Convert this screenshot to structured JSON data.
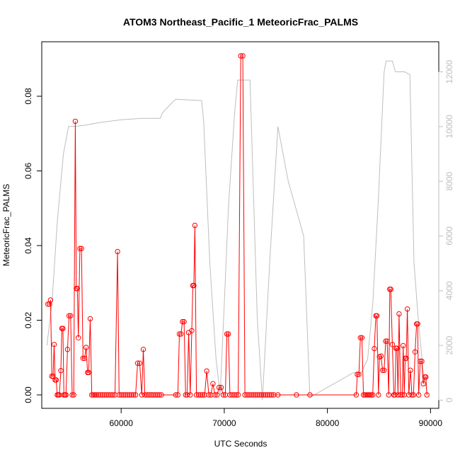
{
  "chart_data": {
    "type": "line",
    "title": "ATOM3 Northeast_Pacific_1 MeteoricFrac_PALMS",
    "xlabel": "UTC Seconds",
    "ylabel": "MeteoricFrac_PALMS",
    "xlim": [
      52300,
      90800
    ],
    "ylim": [
      -0.0036,
      0.0946
    ],
    "y2lim": [
      -300,
      13100
    ],
    "x_ticks": [
      "60000",
      "70000",
      "80000",
      "90000"
    ],
    "y_ticks": [
      "0.00",
      "0.02",
      "0.04",
      "0.06",
      "0.08"
    ],
    "y2_ticks": [
      "0",
      "2000",
      "4000",
      "6000",
      "8000",
      "10000",
      "12000"
    ],
    "colors": {
      "series": "#ff0000",
      "altitude": "#bebebe",
      "frame": "#000000"
    },
    "series": [
      {
        "points": [
          [
            52900,
            0.0243
          ],
          [
            53050,
            0.0243
          ],
          [
            53150,
            0.0254
          ],
          [
            53280,
            0.005
          ],
          [
            53400,
            0.005
          ],
          [
            53500,
            0.0135
          ],
          [
            53600,
            0.004
          ],
          [
            53700,
            0.004
          ],
          [
            53800,
            0.0
          ],
          [
            53900,
            0.0
          ],
          [
            54000,
            0.0
          ],
          [
            54150,
            0.0065
          ],
          [
            54250,
            0.0178
          ],
          [
            54350,
            0.0178
          ],
          [
            54450,
            0.0
          ],
          [
            54550,
            0.0
          ],
          [
            54650,
            0.0
          ],
          [
            54800,
            0.0122
          ],
          [
            54950,
            0.0212
          ],
          [
            55100,
            0.0212
          ],
          [
            55250,
            0.0
          ],
          [
            55400,
            0.0
          ],
          [
            55550,
            0.0733
          ],
          [
            55650,
            0.0285
          ],
          [
            55750,
            0.0285
          ],
          [
            55850,
            0.0153
          ],
          [
            56000,
            0.0392
          ],
          [
            56150,
            0.0392
          ],
          [
            56300,
            0.0098
          ],
          [
            56450,
            0.0098
          ],
          [
            56600,
            0.0127
          ],
          [
            56750,
            0.006
          ],
          [
            56850,
            0.006
          ],
          [
            57000,
            0.0204
          ],
          [
            57150,
            0.0
          ],
          [
            57300,
            0.0
          ],
          [
            57450,
            0.0
          ],
          [
            57600,
            0.0
          ],
          [
            57800,
            0.0
          ],
          [
            58000,
            0.0
          ],
          [
            58200,
            0.0
          ],
          [
            58400,
            0.0
          ],
          [
            58600,
            0.0
          ],
          [
            58800,
            0.0
          ],
          [
            59000,
            0.0
          ],
          [
            59200,
            0.0
          ],
          [
            59400,
            0.0
          ],
          [
            59650,
            0.0384
          ],
          [
            59800,
            0.0
          ],
          [
            60000,
            0.0
          ],
          [
            60200,
            0.0
          ],
          [
            60400,
            0.0
          ],
          [
            60600,
            0.0
          ],
          [
            60800,
            0.0
          ],
          [
            61000,
            0.0
          ],
          [
            61200,
            0.0
          ],
          [
            61400,
            0.0
          ],
          [
            61600,
            0.0085
          ],
          [
            61800,
            0.0085
          ],
          [
            62000,
            0.0
          ],
          [
            62150,
            0.0122
          ],
          [
            62300,
            0.0
          ],
          [
            62500,
            0.0
          ],
          [
            62700,
            0.0
          ],
          [
            62900,
            0.0
          ],
          [
            63100,
            0.0
          ],
          [
            63300,
            0.0
          ],
          [
            63500,
            0.0
          ],
          [
            63700,
            0.0
          ],
          [
            63900,
            0.0
          ],
          [
            65300,
            0.0
          ],
          [
            65500,
            0.0
          ],
          [
            65650,
            0.0163
          ],
          [
            65800,
            0.0163
          ],
          [
            65950,
            0.0196
          ],
          [
            66100,
            0.0196
          ],
          [
            66250,
            0.0
          ],
          [
            66400,
            0.0
          ],
          [
            66550,
            0.0167
          ],
          [
            66700,
            0.0
          ],
          [
            66850,
            0.0172
          ],
          [
            66950,
            0.0293
          ],
          [
            67050,
            0.0293
          ],
          [
            67150,
            0.0454
          ],
          [
            67300,
            0.0
          ],
          [
            67500,
            0.0
          ],
          [
            67700,
            0.0
          ],
          [
            67900,
            0.0
          ],
          [
            68100,
            0.0
          ],
          [
            68300,
            0.0064
          ],
          [
            68500,
            0.0
          ],
          [
            68700,
            0.0
          ],
          [
            68900,
            0.003
          ],
          [
            69100,
            0.0
          ],
          [
            69300,
            0.0
          ],
          [
            69500,
            0.002
          ],
          [
            69700,
            0.002
          ],
          [
            69900,
            0.0
          ],
          [
            70100,
            0.0
          ],
          [
            70250,
            0.0163
          ],
          [
            70400,
            0.0163
          ],
          [
            70550,
            0.0
          ],
          [
            70750,
            0.0
          ],
          [
            70950,
            0.0
          ],
          [
            71150,
            0.0
          ],
          [
            71350,
            0.0
          ],
          [
            71600,
            0.0908
          ],
          [
            71800,
            0.0908
          ],
          [
            72000,
            0.0
          ],
          [
            72200,
            0.0
          ],
          [
            72400,
            0.0
          ],
          [
            72600,
            0.0
          ],
          [
            72800,
            0.0
          ],
          [
            73000,
            0.0
          ],
          [
            73200,
            0.0
          ],
          [
            73400,
            0.0
          ],
          [
            73600,
            0.0
          ],
          [
            73800,
            0.0
          ],
          [
            74000,
            0.0
          ],
          [
            74200,
            0.0
          ],
          [
            74400,
            0.0
          ],
          [
            74600,
            0.0
          ],
          [
            74800,
            0.0
          ],
          [
            75200,
            0.0
          ],
          [
            77000,
            0.0
          ],
          [
            78300,
            0.0
          ],
          [
            82800,
            0.0
          ],
          [
            82900,
            0.0055
          ],
          [
            83050,
            0.0055
          ],
          [
            83200,
            0.0153
          ],
          [
            83350,
            0.0153
          ],
          [
            83500,
            0.0
          ],
          [
            83650,
            0.0
          ],
          [
            83800,
            0.0
          ],
          [
            83950,
            0.0
          ],
          [
            84100,
            0.0
          ],
          [
            84250,
            0.0
          ],
          [
            84400,
            0.0
          ],
          [
            84550,
            0.0124
          ],
          [
            84700,
            0.0212
          ],
          [
            84800,
            0.0212
          ],
          [
            84950,
            0.0
          ],
          [
            85050,
            0.0102
          ],
          [
            85200,
            0.0104
          ],
          [
            85350,
            0.0066
          ],
          [
            85500,
            0.0066
          ],
          [
            85650,
            0.0144
          ],
          [
            85800,
            0.0144
          ],
          [
            85950,
            0.0
          ],
          [
            86050,
            0.0283
          ],
          [
            86150,
            0.0283
          ],
          [
            86300,
            0.0135
          ],
          [
            86450,
            0.0
          ],
          [
            86550,
            0.0
          ],
          [
            86650,
            0.0125
          ],
          [
            86750,
            0.0125
          ],
          [
            86850,
            0.0
          ],
          [
            86950,
            0.0217
          ],
          [
            87100,
            0.0
          ],
          [
            87250,
            0.0
          ],
          [
            87350,
            0.0132
          ],
          [
            87450,
            0.0
          ],
          [
            87550,
            0.0098
          ],
          [
            87650,
            0.0098
          ],
          [
            87750,
            0.023
          ],
          [
            87900,
            0.0
          ],
          [
            88050,
            0.0066
          ],
          [
            88200,
            0.0
          ],
          [
            88350,
            0.0
          ],
          [
            88500,
            0.0115
          ],
          [
            88650,
            0.019
          ],
          [
            88750,
            0.019
          ],
          [
            88850,
            0.0
          ],
          [
            89000,
            0.009
          ],
          [
            89150,
            0.009
          ],
          [
            89300,
            0.003
          ],
          [
            89450,
            0.0048
          ],
          [
            89550,
            0.0048
          ],
          [
            89650,
            0.0
          ]
        ]
      },
      {
        "axis": "right",
        "points": [
          [
            52800,
            2000
          ],
          [
            53300,
            3600
          ],
          [
            53800,
            6500
          ],
          [
            54400,
            9000
          ],
          [
            54900,
            10000
          ],
          [
            55500,
            10000
          ],
          [
            56500,
            10050
          ],
          [
            58000,
            10150
          ],
          [
            60000,
            10250
          ],
          [
            62000,
            10300
          ],
          [
            63800,
            10300
          ],
          [
            64000,
            10500
          ],
          [
            65000,
            10900
          ],
          [
            65300,
            11000
          ],
          [
            67800,
            10950
          ],
          [
            68000,
            10200
          ],
          [
            68600,
            5000
          ],
          [
            69200,
            1500
          ],
          [
            69600,
            200
          ],
          [
            70000,
            3500
          ],
          [
            70400,
            7000
          ],
          [
            71000,
            10500
          ],
          [
            71300,
            11700
          ],
          [
            72500,
            11700
          ],
          [
            73200,
            3000
          ],
          [
            73700,
            0
          ],
          [
            74400,
            5000
          ],
          [
            75200,
            10000
          ],
          [
            76200,
            8000
          ],
          [
            77700,
            6000
          ],
          [
            78300,
            100
          ],
          [
            82500,
            1000
          ],
          [
            83300,
            1000
          ],
          [
            83900,
            1500
          ],
          [
            84400,
            3500
          ],
          [
            84900,
            7000
          ],
          [
            85500,
            12000
          ],
          [
            85700,
            12400
          ],
          [
            86300,
            12400
          ],
          [
            86600,
            12000
          ],
          [
            87500,
            12000
          ],
          [
            88000,
            11900
          ],
          [
            88400,
            5000
          ],
          [
            88800,
            3000
          ],
          [
            89300,
            1000
          ],
          [
            89700,
            200
          ]
        ]
      }
    ]
  }
}
